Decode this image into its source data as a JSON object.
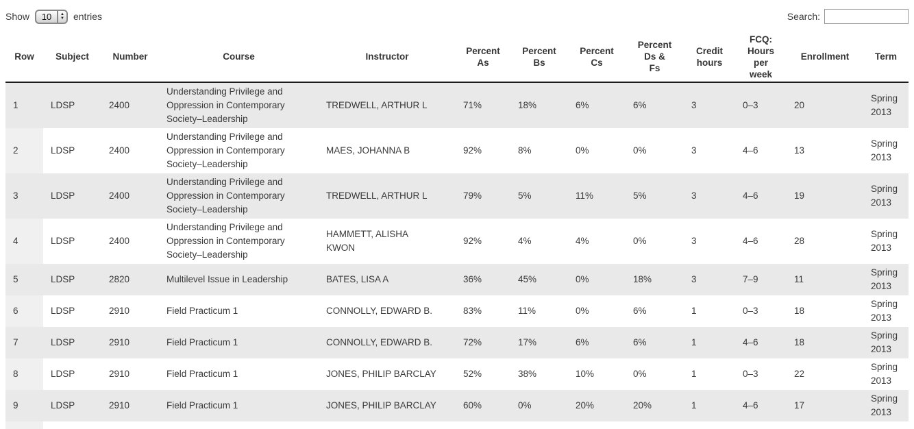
{
  "theme": {
    "text": "#3a3a3a",
    "stripe": "#e9e9e9",
    "rowcol": "#f0f0f0",
    "header_rule": "#1c1c1c"
  },
  "controls": {
    "show_label": "Show",
    "entries_value": "10",
    "entries_label": "entries",
    "search_label": "Search:",
    "search_value": ""
  },
  "table": {
    "columns": [
      {
        "key": "row",
        "label": "Row"
      },
      {
        "key": "subject",
        "label": "Subject"
      },
      {
        "key": "number",
        "label": "Number"
      },
      {
        "key": "course",
        "label": "Course"
      },
      {
        "key": "instructor",
        "label": "Instructor"
      },
      {
        "key": "pct_as",
        "label": "Percent\nAs"
      },
      {
        "key": "pct_bs",
        "label": "Percent\nBs"
      },
      {
        "key": "pct_cs",
        "label": "Percent\nCs"
      },
      {
        "key": "pct_ds_fs",
        "label": "Percent\nDs &\nFs"
      },
      {
        "key": "credit_hours",
        "label": "Credit\nhours"
      },
      {
        "key": "fcq_hours",
        "label": "FCQ:\nHours\nper\nweek"
      },
      {
        "key": "enrollment",
        "label": "Enrollment"
      },
      {
        "key": "term",
        "label": "Term"
      }
    ],
    "rows": [
      {
        "row": "1",
        "subject": "LDSP",
        "number": "2400",
        "course": "Understanding Privilege and Oppression in Contemporary Society–Leadership",
        "instructor": "TREDWELL, ARTHUR L",
        "pct_as": "71%",
        "pct_bs": "18%",
        "pct_cs": "6%",
        "pct_ds_fs": "6%",
        "credit_hours": "3",
        "fcq_hours": "0–3",
        "enrollment": "20",
        "term": "Spring 2013"
      },
      {
        "row": "2",
        "subject": "LDSP",
        "number": "2400",
        "course": "Understanding Privilege and Oppression in Contemporary Society–Leadership",
        "instructor": "MAES, JOHANNA B",
        "pct_as": "92%",
        "pct_bs": "8%",
        "pct_cs": "0%",
        "pct_ds_fs": "0%",
        "credit_hours": "3",
        "fcq_hours": "4–6",
        "enrollment": "13",
        "term": "Spring 2013"
      },
      {
        "row": "3",
        "subject": "LDSP",
        "number": "2400",
        "course": "Understanding Privilege and Oppression in Contemporary Society–Leadership",
        "instructor": "TREDWELL, ARTHUR L",
        "pct_as": "79%",
        "pct_bs": "5%",
        "pct_cs": "11%",
        "pct_ds_fs": "5%",
        "credit_hours": "3",
        "fcq_hours": "4–6",
        "enrollment": "19",
        "term": "Spring 2013"
      },
      {
        "row": "4",
        "subject": "LDSP",
        "number": "2400",
        "course": "Understanding Privilege and Oppression in Contemporary Society–Leadership",
        "instructor": "HAMMETT, ALISHA KWON",
        "pct_as": "92%",
        "pct_bs": "4%",
        "pct_cs": "4%",
        "pct_ds_fs": "0%",
        "credit_hours": "3",
        "fcq_hours": "4–6",
        "enrollment": "28",
        "term": "Spring 2013"
      },
      {
        "row": "5",
        "subject": "LDSP",
        "number": "2820",
        "course": "Multilevel Issue in Leadership",
        "instructor": "BATES, LISA A",
        "pct_as": "36%",
        "pct_bs": "45%",
        "pct_cs": "0%",
        "pct_ds_fs": "18%",
        "credit_hours": "3",
        "fcq_hours": "7–9",
        "enrollment": "11",
        "term": "Spring 2013"
      },
      {
        "row": "6",
        "subject": "LDSP",
        "number": "2910",
        "course": "Field Practicum 1",
        "instructor": "CONNOLLY, EDWARD B.",
        "pct_as": "83%",
        "pct_bs": "11%",
        "pct_cs": "0%",
        "pct_ds_fs": "6%",
        "credit_hours": "1",
        "fcq_hours": "0–3",
        "enrollment": "18",
        "term": "Spring 2013"
      },
      {
        "row": "7",
        "subject": "LDSP",
        "number": "2910",
        "course": "Field Practicum 1",
        "instructor": "CONNOLLY, EDWARD B.",
        "pct_as": "72%",
        "pct_bs": "17%",
        "pct_cs": "6%",
        "pct_ds_fs": "6%",
        "credit_hours": "1",
        "fcq_hours": "4–6",
        "enrollment": "18",
        "term": "Spring 2013"
      },
      {
        "row": "8",
        "subject": "LDSP",
        "number": "2910",
        "course": "Field Practicum 1",
        "instructor": "JONES, PHILIP BARCLAY",
        "pct_as": "52%",
        "pct_bs": "38%",
        "pct_cs": "10%",
        "pct_ds_fs": "0%",
        "credit_hours": "1",
        "fcq_hours": "0–3",
        "enrollment": "22",
        "term": "Spring 2013"
      },
      {
        "row": "9",
        "subject": "LDSP",
        "number": "2910",
        "course": "Field Practicum 1",
        "instructor": "JONES, PHILIP BARCLAY",
        "pct_as": "60%",
        "pct_bs": "0%",
        "pct_cs": "20%",
        "pct_ds_fs": "20%",
        "credit_hours": "1",
        "fcq_hours": "4–6",
        "enrollment": "17",
        "term": "Spring 2013"
      }
    ]
  }
}
